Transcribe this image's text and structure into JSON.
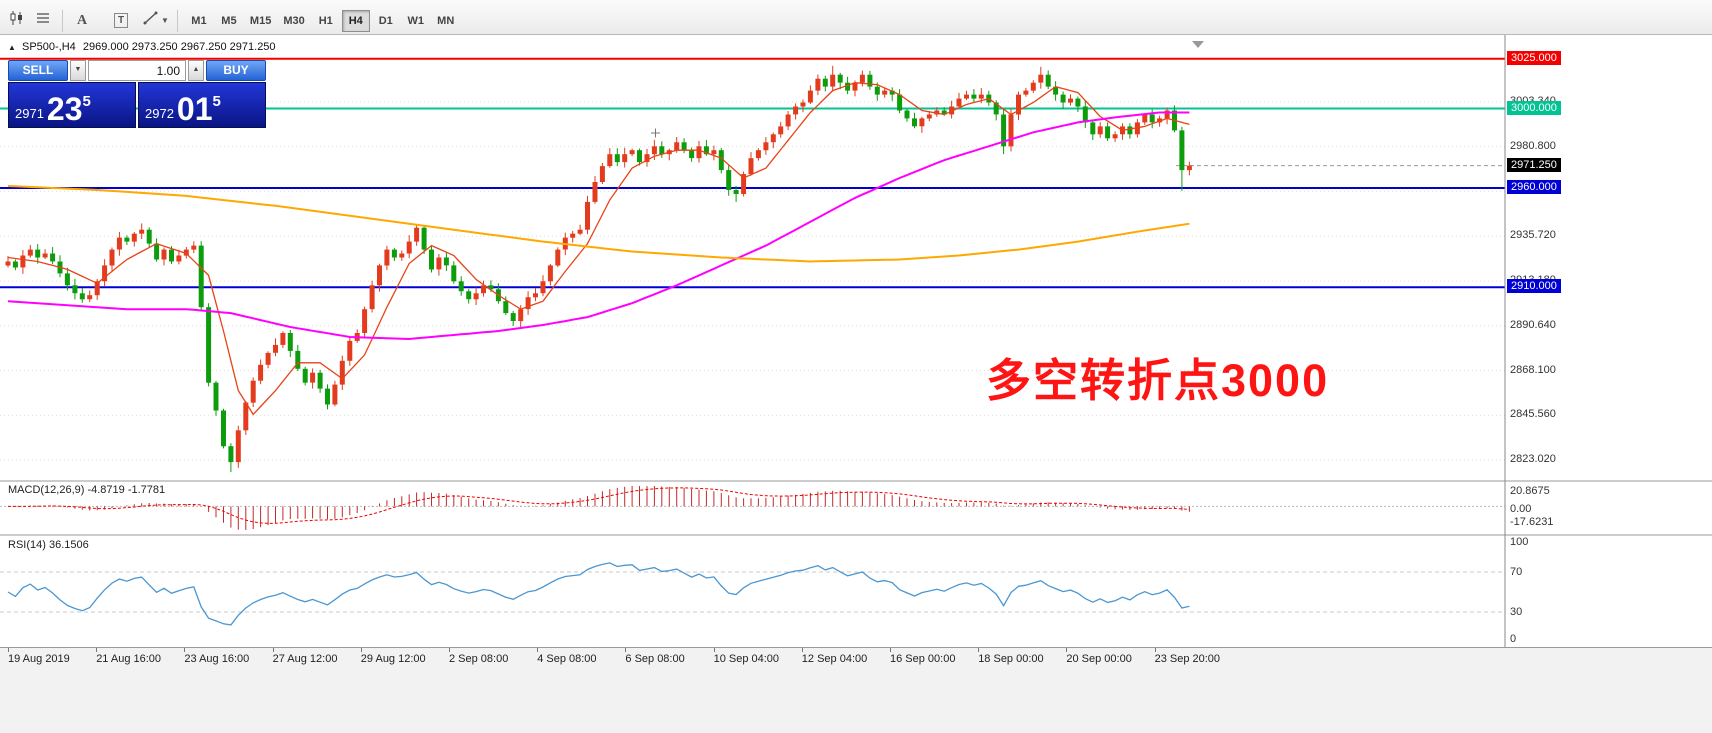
{
  "toolbar": {
    "text_tool": "A",
    "label_tool": "T",
    "timeframes": [
      "M1",
      "M5",
      "M15",
      "M30",
      "H1",
      "H4",
      "D1",
      "W1",
      "MN"
    ],
    "active_timeframe": "H4"
  },
  "chart": {
    "header": {
      "symbol": "SP500-,H4",
      "ohlc": "2969.000 2973.250 2967.250 2971.250"
    }
  },
  "trade_widget": {
    "sell_label": "SELL",
    "buy_label": "BUY",
    "lot_value": "1.00",
    "sell_price": {
      "big_part": "2971",
      "pips": "23",
      "pipette": "5"
    },
    "buy_price": {
      "big_part": "2972",
      "pips": "01",
      "pipette": "5"
    }
  },
  "annotation": {
    "text": "多空转折点3000",
    "color": "#ff1414"
  },
  "price_axis": {
    "grid_ticks": [
      3003.34,
      2980.8,
      2958.26,
      2935.72,
      2913.18,
      2890.64,
      2868.1,
      2845.56,
      2823.02
    ],
    "tick_labels": [
      "3003.340",
      "2980.800",
      "2935.720",
      "2913.180",
      "2890.640",
      "2868.100",
      "2845.560",
      "2823.020"
    ],
    "lines": [
      {
        "price": 3025.0,
        "label": "3025.000",
        "color": "#f40000"
      },
      {
        "price": 3000.0,
        "label": "3000.000",
        "color": "#00c493"
      },
      {
        "price": 2960.0,
        "label": "2960.000",
        "color": "#0000d4"
      },
      {
        "price": 2910.0,
        "label": "2910.000",
        "color": "#0000d4"
      }
    ],
    "current_price": {
      "price": 2971.25,
      "label": "2971.250",
      "color": "#000000"
    }
  },
  "macd_panel": {
    "header": "MACD(12,26,9) -4.8719 -1.7781",
    "axis": [
      "20.8675",
      "0.00",
      "-17.6231"
    ]
  },
  "rsi_panel": {
    "header": "RSI(14) 36.1506",
    "axis": [
      "100",
      "70",
      "30",
      "0"
    ]
  },
  "time_axis": {
    "labels": [
      "19 Aug 2019",
      "21 Aug 16:00",
      "23 Aug 16:00",
      "27 Aug 12:00",
      "29 Aug 12:00",
      "2 Sep 08:00",
      "4 Sep 08:00",
      "6 Sep 08:00",
      "10 Sep 04:00",
      "12 Sep 04:00",
      "16 Sep 00:00",
      "18 Sep 00:00",
      "20 Sep 00:00",
      "23 Sep 20:00"
    ]
  },
  "chart_data": {
    "type": "candlestick",
    "symbol": "SP500-",
    "timeframe": "H4",
    "title": "SP500- H4 with MACD(12,26,9) and RSI(14)",
    "current_bar_ohlc": {
      "open": 2969.0,
      "high": 2973.25,
      "low": 2967.25,
      "close": 2971.25
    },
    "ylim_visible": [
      2813,
      3037
    ],
    "up_color": "#e23b1e",
    "down_color": "#0c9c0c",
    "first_open": 2921,
    "closes": [
      2923,
      2920,
      2926,
      2929,
      2925,
      2927,
      2923,
      2917,
      2911,
      2907,
      2904,
      2906,
      2913,
      2921,
      2929,
      2935,
      2933,
      2937,
      2939,
      2932,
      2924,
      2929,
      2923,
      2926,
      2929,
      2931,
      2900,
      2862,
      2848,
      2830,
      2822,
      2838,
      2852,
      2863,
      2871,
      2877,
      2881,
      2887,
      2878,
      2869,
      2862,
      2867,
      2859,
      2851,
      2861,
      2873,
      2883,
      2887,
      2899,
      2911,
      2921,
      2929,
      2925,
      2927,
      2933,
      2940,
      2929,
      2919,
      2925,
      2921,
      2913,
      2908,
      2904,
      2907,
      2911,
      2909,
      2903,
      2897,
      2893,
      2899,
      2905,
      2907,
      2913,
      2921,
      2929,
      2935,
      2937,
      2939,
      2953,
      2963,
      2971,
      2977,
      2973,
      2977,
      2979,
      2973,
      2977,
      2981,
      2977,
      2979,
      2983,
      2979,
      2975,
      2981,
      2977,
      2979,
      2969,
      2959,
      2957,
      2967,
      2975,
      2979,
      2983,
      2987,
      2991,
      2997,
      3001,
      3003,
      3009,
      3015,
      3011,
      3017,
      3013,
      3009,
      3013,
      3017,
      3011,
      3007,
      3009,
      3007,
      2999,
      2995,
      2991,
      2995,
      2997,
      2999,
      2997,
      3001,
      3005,
      3007,
      3005,
      3007,
      3003,
      2997,
      2981,
      2997,
      3007,
      3009,
      3013,
      3017,
      3011,
      3007,
      3003,
      3005,
      3001,
      2993,
      2987,
      2991,
      2985,
      2987,
      2991,
      2987,
      2993,
      2997,
      2993,
      2995,
      2999,
      2989,
      2969,
      2971.25
    ],
    "special_highs": {
      "111": 3021.5,
      "139": 3021.0,
      "159": 2973.25
    },
    "special_lows": {
      "30": 2817.0,
      "98": 2953.0,
      "134": 2977.0,
      "158": 2958.5,
      "159": 2967.25
    },
    "moving_averages": [
      {
        "name": "fast",
        "color": "#e84316",
        "width": 1.3,
        "waypoints": [
          [
            0,
            2925
          ],
          [
            4,
            2923
          ],
          [
            8,
            2919
          ],
          [
            12,
            2912
          ],
          [
            16,
            2924
          ],
          [
            20,
            2932
          ],
          [
            24,
            2927
          ],
          [
            27,
            2916
          ],
          [
            29,
            2888
          ],
          [
            31,
            2858
          ],
          [
            33,
            2846
          ],
          [
            36,
            2858
          ],
          [
            39,
            2872
          ],
          [
            42,
            2872
          ],
          [
            45,
            2864
          ],
          [
            48,
            2876
          ],
          [
            51,
            2900
          ],
          [
            54,
            2922
          ],
          [
            57,
            2931
          ],
          [
            60,
            2926
          ],
          [
            63,
            2914
          ],
          [
            66,
            2906
          ],
          [
            69,
            2899
          ],
          [
            72,
            2903
          ],
          [
            75,
            2918
          ],
          [
            78,
            2932
          ],
          [
            81,
            2954
          ],
          [
            84,
            2970
          ],
          [
            87,
            2976
          ],
          [
            90,
            2979
          ],
          [
            93,
            2979
          ],
          [
            96,
            2975
          ],
          [
            99,
            2965
          ],
          [
            102,
            2970
          ],
          [
            105,
            2984
          ],
          [
            108,
            2998
          ],
          [
            111,
            3009
          ],
          [
            114,
            3013
          ],
          [
            117,
            3012
          ],
          [
            120,
            3007
          ],
          [
            123,
            2999
          ],
          [
            126,
            2997
          ],
          [
            129,
            3002
          ],
          [
            132,
            3005
          ],
          [
            135,
            2997
          ],
          [
            138,
            3003
          ],
          [
            141,
            3011
          ],
          [
            144,
            3008
          ],
          [
            147,
            2996
          ],
          [
            150,
            2989
          ],
          [
            153,
            2991
          ],
          [
            156,
            2995
          ],
          [
            159,
            2992
          ]
        ]
      },
      {
        "name": "medium",
        "color": "#ff00ff",
        "width": 2,
        "waypoints": [
          [
            0,
            2903
          ],
          [
            8,
            2901
          ],
          [
            16,
            2899
          ],
          [
            24,
            2899
          ],
          [
            30,
            2897
          ],
          [
            38,
            2890
          ],
          [
            46,
            2885
          ],
          [
            54,
            2884
          ],
          [
            60,
            2886
          ],
          [
            66,
            2888
          ],
          [
            72,
            2891
          ],
          [
            78,
            2895
          ],
          [
            84,
            2902
          ],
          [
            90,
            2911
          ],
          [
            96,
            2921
          ],
          [
            102,
            2931
          ],
          [
            108,
            2943
          ],
          [
            114,
            2955
          ],
          [
            120,
            2965
          ],
          [
            126,
            2974
          ],
          [
            132,
            2981
          ],
          [
            138,
            2988
          ],
          [
            144,
            2993
          ],
          [
            150,
            2996
          ],
          [
            155,
            2998
          ],
          [
            159,
            2998
          ]
        ]
      },
      {
        "name": "slow",
        "color": "#ffa800",
        "width": 2,
        "waypoints": [
          [
            0,
            2961
          ],
          [
            12,
            2959
          ],
          [
            24,
            2956
          ],
          [
            36,
            2951
          ],
          [
            48,
            2945
          ],
          [
            60,
            2939
          ],
          [
            72,
            2933
          ],
          [
            84,
            2928
          ],
          [
            96,
            2925
          ],
          [
            108,
            2923
          ],
          [
            120,
            2924
          ],
          [
            128,
            2926
          ],
          [
            136,
            2929
          ],
          [
            144,
            2933
          ],
          [
            152,
            2938
          ],
          [
            159,
            2942
          ]
        ]
      }
    ],
    "macd": {
      "fast": 12,
      "slow": 26,
      "signal": 9,
      "main_value": -4.8719,
      "signal_value": -1.7781,
      "axis_max": 20.8675,
      "axis_min": -17.6231
    },
    "rsi": {
      "period": 14,
      "value": 36.1506,
      "levels": [
        70,
        30
      ]
    }
  }
}
